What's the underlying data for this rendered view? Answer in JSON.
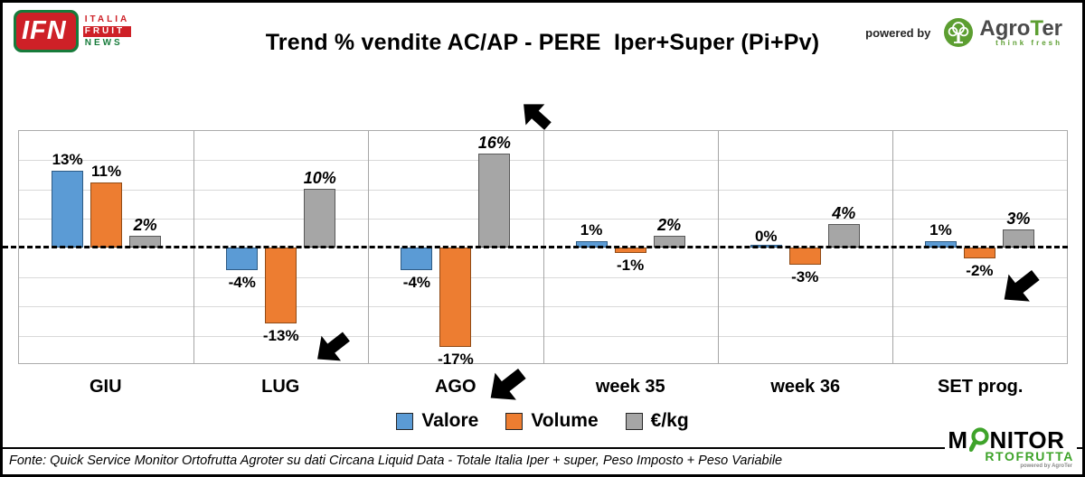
{
  "header": {
    "title": "Trend % vendite AC/AP - PERE  Iper+Super (Pi+Pv)",
    "ifn_logo": {
      "abbr": "IFN",
      "word1": "ITALIA",
      "word2": "FRUIT",
      "word3": "NEWS"
    },
    "powered_by": "powered by",
    "agroter": {
      "name_pre": "Agro",
      "name_t": "T",
      "name_post": "er",
      "tagline": "think fresh"
    }
  },
  "chart_data": {
    "type": "bar",
    "title": "Trend % vendite AC/AP - PERE Iper+Super (Pi+Pv)",
    "categories": [
      "GIU",
      "LUG",
      "AGO",
      "week 35",
      "week 36",
      "SET prog."
    ],
    "series": [
      {
        "name": "Valore",
        "color": "#5B9BD5",
        "border": "#2E5B84",
        "italic_labels": false,
        "values": [
          13,
          -4,
          -4,
          1,
          0,
          1
        ],
        "labels": [
          "13%",
          "-4%",
          "-4%",
          "1%",
          "0%",
          "1%"
        ]
      },
      {
        "name": "Volume",
        "color": "#ED7D31",
        "border": "#8f4a16",
        "italic_labels": false,
        "values": [
          11,
          -13,
          -17,
          -1,
          -3,
          -2
        ],
        "labels": [
          "11%",
          "-13%",
          "-17%",
          "-1%",
          "-3%",
          "-2%"
        ]
      },
      {
        "name": "€/kg",
        "color": "#A6A6A6",
        "border": "#595959",
        "italic_labels": true,
        "values": [
          2,
          10,
          16,
          2,
          4,
          3
        ],
        "labels": [
          "2%",
          "10%",
          "16%",
          "2%",
          "4%",
          "3%"
        ]
      }
    ],
    "ylim": [
      -20,
      20
    ],
    "gridline_step": 5,
    "zero_line": "dashed-black",
    "grid": true,
    "legend_position": "bottom",
    "annotations": [
      "black arrow pointing at AGO €/kg 16%",
      "black arrow pointing at LUG Volume -13%",
      "black arrow pointing at AGO Volume -17%",
      "black arrow pointing at SET prog. Volume -2%"
    ]
  },
  "footer": {
    "source": "Fonte: Quick Service Monitor Ortofrutta Agroter su dati Circana Liquid Data - Totale Italia Iper + super, Peso Imposto + Peso Variabile"
  },
  "monitor_logo": {
    "m": "M",
    "nitor": "NITOR",
    "line2": "RTOFRUTTA",
    "tagline": "powered by AgroTer"
  }
}
